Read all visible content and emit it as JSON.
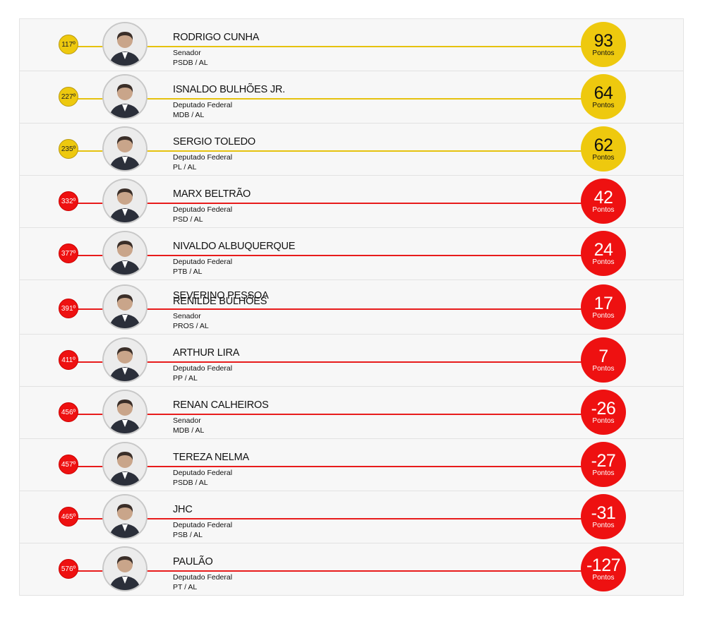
{
  "points_label": "Pontos",
  "overlap_ghost_name": "SEVERINO PESSOA",
  "colors": {
    "yellow": "#eec90e",
    "red": "#ee1111"
  },
  "rows": [
    {
      "rank": "117º",
      "name": "RODRIGO CUNHA",
      "role": "Senador",
      "party": "PSDB / AL",
      "score": "93",
      "tier": "yellow"
    },
    {
      "rank": "227º",
      "name": "ISNALDO BULHÕES JR.",
      "role": "Deputado Federal",
      "party": "MDB / AL",
      "score": "64",
      "tier": "yellow"
    },
    {
      "rank": "235º",
      "name": "SERGIO TOLEDO",
      "role": "Deputado Federal",
      "party": "PL / AL",
      "score": "62",
      "tier": "yellow"
    },
    {
      "rank": "332º",
      "name": "MARX BELTRÃO",
      "role": "Deputado Federal",
      "party": "PSD / AL",
      "score": "42",
      "tier": "red"
    },
    {
      "rank": "377º",
      "name": "NIVALDO ALBUQUERQUE",
      "role": "Deputado Federal",
      "party": "PTB / AL",
      "score": "24",
      "tier": "red"
    },
    {
      "rank": "391º",
      "name": "RENILDE BULHÕES",
      "role": "Senador",
      "party": "PROS / AL",
      "score": "17",
      "tier": "red"
    },
    {
      "rank": "411º",
      "name": "ARTHUR LIRA",
      "role": "Deputado Federal",
      "party": "PP / AL",
      "score": "7",
      "tier": "red"
    },
    {
      "rank": "456º",
      "name": "RENAN CALHEIROS",
      "role": "Senador",
      "party": "MDB / AL",
      "score": "-26",
      "tier": "red"
    },
    {
      "rank": "457º",
      "name": "TEREZA NELMA",
      "role": "Deputado Federal",
      "party": "PSDB / AL",
      "score": "-27",
      "tier": "red"
    },
    {
      "rank": "465º",
      "name": "JHC",
      "role": "Deputado Federal",
      "party": "PSB / AL",
      "score": "-31",
      "tier": "red"
    },
    {
      "rank": "576º",
      "name": "PAULÃO",
      "role": "Deputado Federal",
      "party": "PT / AL",
      "score": "-127",
      "tier": "red"
    }
  ]
}
